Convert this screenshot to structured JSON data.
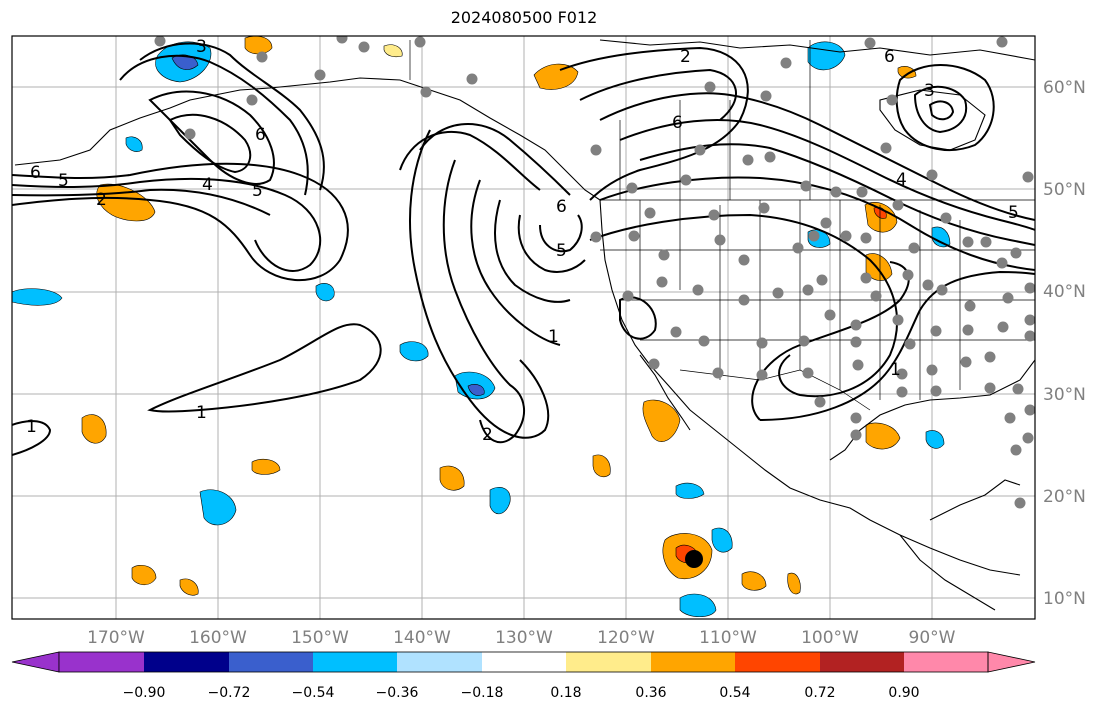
{
  "title": "2024080500 F012",
  "map": {
    "lat_labels": [
      "60°N",
      "50°N",
      "40°N",
      "30°N",
      "20°N",
      "10°N"
    ],
    "lon_labels": [
      "170°W",
      "160°W",
      "150°W",
      "140°W",
      "130°W",
      "120°W",
      "110°W",
      "100°W",
      "90°W"
    ],
    "contour_labels": [
      "2",
      "3",
      "4",
      "5",
      "6",
      "1"
    ],
    "colors": {
      "coast": "#000000",
      "grid": "#b0b0b0",
      "station": "#808080",
      "marker": "#000000"
    }
  },
  "colorbar": {
    "colors": [
      "#9932cc",
      "#00008b",
      "#3a5fcd",
      "#00bfff",
      "#b0e2ff",
      "#ffffff",
      "#ffec8b",
      "#ffa500",
      "#ff4500",
      "#b22222",
      "#ff88aa"
    ],
    "tick_labels": [
      "−0.90",
      "−0.72",
      "−0.54",
      "−0.36",
      "−0.18",
      "0.18",
      "0.36",
      "0.54",
      "0.72",
      "0.90"
    ]
  }
}
